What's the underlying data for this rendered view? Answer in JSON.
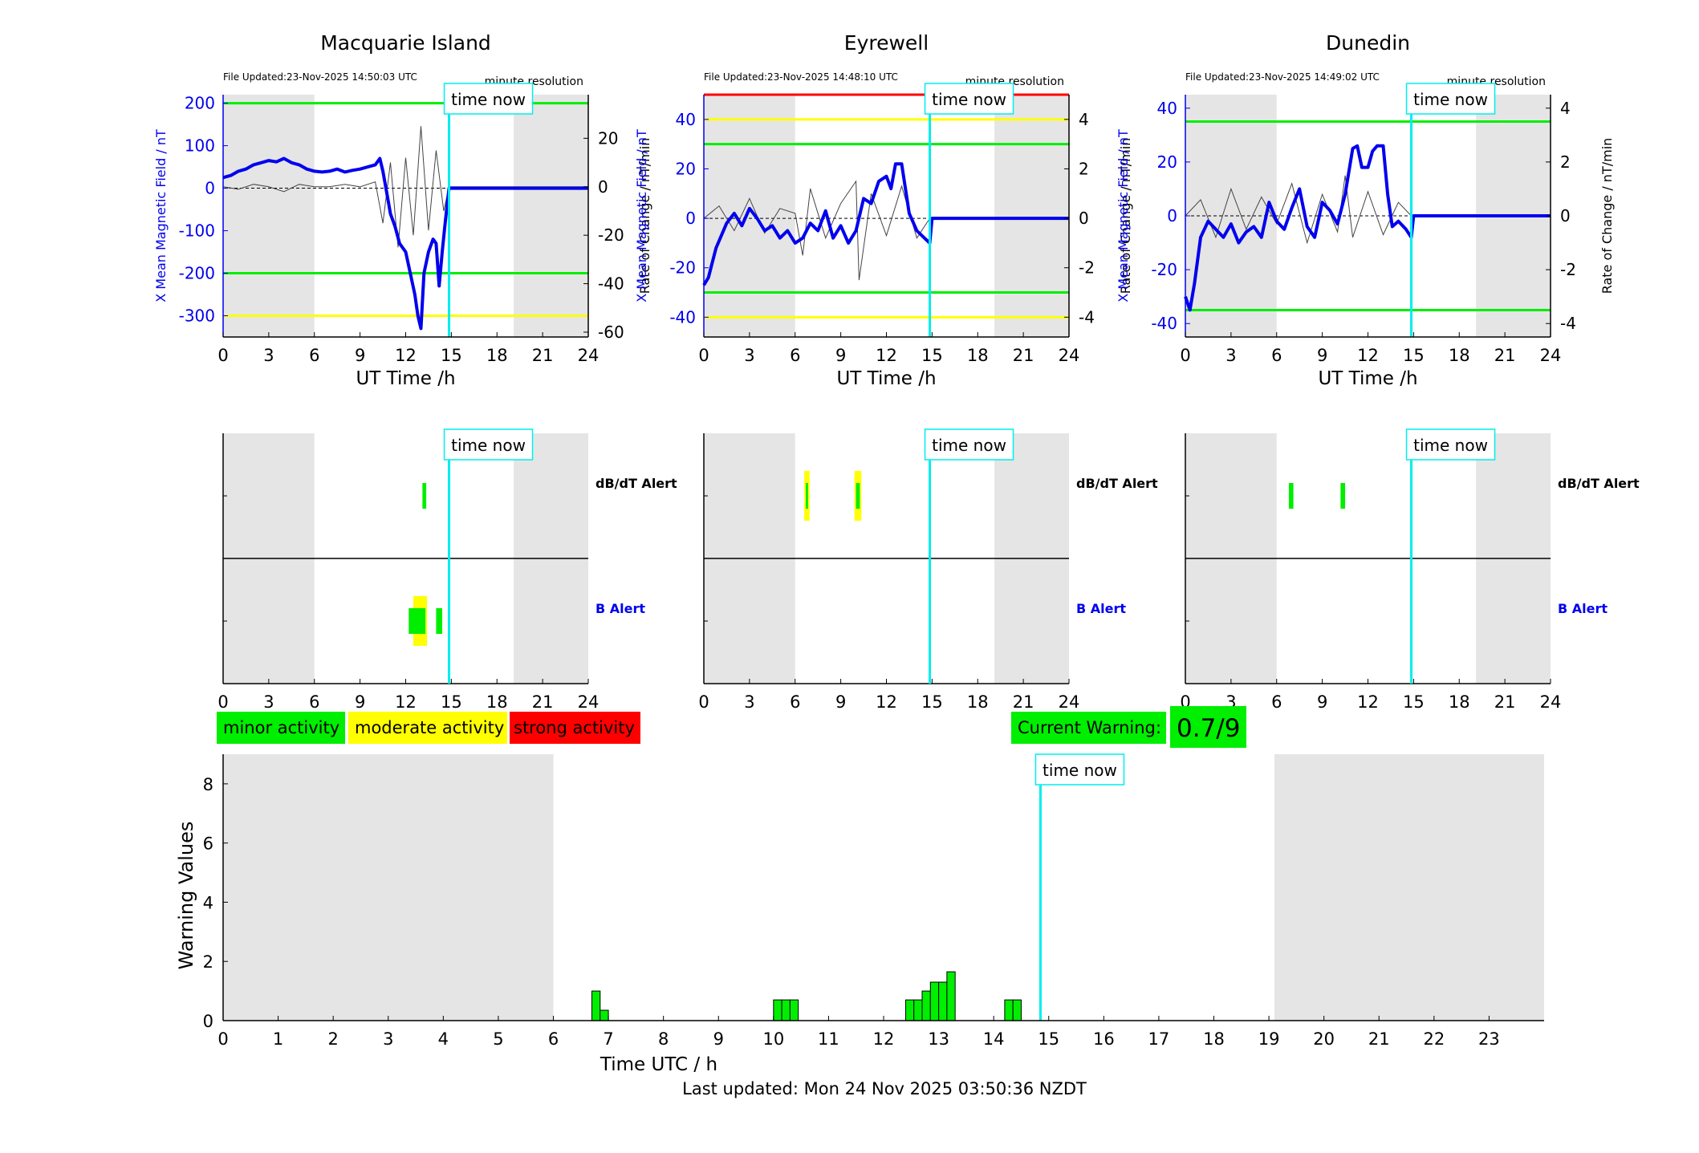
{
  "panels": [
    {
      "title": "Macquarie Island",
      "file_updated": "File Updated:23-Nov-2025 14:50:03 UTC",
      "resolution": "minute resolution",
      "time_now_label": "time now",
      "left_axis_label": "X Mean Magnetic Field / nT",
      "right_axis_label": "Rate of Change / nT/min",
      "x_axis_label": "UT Time /h",
      "x_ticks": [
        "0",
        "3",
        "6",
        "9",
        "12",
        "15",
        "18",
        "21",
        "24"
      ],
      "left_ticks": [
        "-300",
        "-200",
        "-100",
        "0",
        "100",
        "200"
      ],
      "right_ticks": [
        "-60",
        "-40",
        "-20",
        "0",
        "20"
      ],
      "alert_dbdt_label": "dB/dT Alert",
      "alert_b_label": "B Alert",
      "alert_x_ticks": [
        "0",
        "3",
        "6",
        "9",
        "12",
        "15",
        "18",
        "21",
        "24"
      ]
    },
    {
      "title": "Eyrewell",
      "file_updated": "File Updated:23-Nov-2025 14:48:10 UTC",
      "resolution": "minute resolution",
      "time_now_label": "time now",
      "left_axis_label": "X Mean Magnetic Field / nT",
      "right_axis_label": "Rate of Change / nT/min",
      "x_axis_label": "UT Time /h",
      "x_ticks": [
        "0",
        "3",
        "6",
        "9",
        "12",
        "15",
        "18",
        "21",
        "24"
      ],
      "left_ticks": [
        "-40",
        "-20",
        "0",
        "20",
        "40"
      ],
      "right_ticks": [
        "-4",
        "-2",
        "0",
        "2",
        "4"
      ],
      "alert_dbdt_label": "dB/dT Alert",
      "alert_b_label": "B Alert",
      "alert_x_ticks": [
        "0",
        "3",
        "6",
        "9",
        "12",
        "15",
        "18",
        "21",
        "24"
      ]
    },
    {
      "title": "Dunedin",
      "file_updated": "File Updated:23-Nov-2025 14:49:02 UTC",
      "resolution": "minute resolution",
      "time_now_label": "time now",
      "left_axis_label": "X Mean Magnetic Field / nT",
      "right_axis_label": "Rate of Change / nT/min",
      "x_axis_label": "UT Time /h",
      "x_ticks": [
        "0",
        "3",
        "6",
        "9",
        "12",
        "15",
        "18",
        "21",
        "24"
      ],
      "left_ticks": [
        "-40",
        "-20",
        "0",
        "20",
        "40"
      ],
      "right_ticks": [
        "-4",
        "-2",
        "0",
        "2",
        "4"
      ],
      "alert_dbdt_label": "dB/dT Alert",
      "alert_b_label": "B Alert",
      "alert_x_ticks": [
        "0",
        "3",
        "6",
        "9",
        "12",
        "15",
        "18",
        "21",
        "24"
      ]
    }
  ],
  "legend": {
    "minor": "minor activity",
    "moderate": "moderate activity",
    "strong": "strong activity"
  },
  "current_warning": {
    "label": "Current Warning:",
    "value": "0.7/9"
  },
  "bottom": {
    "time_now_label": "time now",
    "y_label": "Warning Values",
    "x_label": "Time UTC / h",
    "x_ticks": [
      "0",
      "1",
      "2",
      "3",
      "4",
      "5",
      "6",
      "7",
      "8",
      "9",
      "10",
      "11",
      "12",
      "13",
      "14",
      "15",
      "16",
      "17",
      "18",
      "19",
      "20",
      "21",
      "22",
      "23"
    ],
    "y_ticks": [
      "0",
      "2",
      "4",
      "6",
      "8"
    ]
  },
  "footer": {
    "last_updated": "Last updated: Mon 24 Nov 2025 03:50:36 NZDT"
  },
  "colors": {
    "field": "#0000ee",
    "rate": "#444444",
    "minor": "#00ee00",
    "moderate": "#ffff00",
    "strong": "#ff0000",
    "time_now": "#00eeee",
    "night_shade": "#e5e5e5"
  },
  "chart_data": [
    {
      "type": "line",
      "station": "Macquarie Island",
      "xlim": [
        0,
        24
      ],
      "ylim_left": [
        -350,
        220
      ],
      "ylim_right": [
        -62,
        38
      ],
      "time_now": 14.85,
      "night_shade_hours": [
        [
          0,
          6
        ],
        [
          19.1,
          24
        ]
      ],
      "threshold_lines": [
        {
          "value": 200,
          "color": "#00ee00"
        },
        {
          "value": -200,
          "color": "#00ee00"
        },
        {
          "value": -300,
          "color": "#ffff00"
        }
      ],
      "series": [
        {
          "name": "X Mean Magnetic Field / nT",
          "x": [
            0,
            0.5,
            1,
            1.5,
            2,
            2.5,
            3,
            3.5,
            4,
            4.5,
            5,
            5.5,
            6,
            6.5,
            7,
            7.5,
            8,
            8.5,
            9,
            9.5,
            10,
            10.3,
            10.5,
            10.8,
            11,
            11.3,
            11.6,
            12,
            12.3,
            12.6,
            12.8,
            13,
            13.2,
            13.5,
            13.8,
            14,
            14.2,
            14.4,
            14.6,
            14.85,
            15,
            24
          ],
          "y": [
            25,
            30,
            40,
            45,
            55,
            60,
            65,
            62,
            70,
            60,
            55,
            45,
            40,
            38,
            40,
            45,
            38,
            42,
            45,
            50,
            55,
            70,
            40,
            -20,
            -60,
            -90,
            -130,
            -150,
            -200,
            -250,
            -300,
            -330,
            -200,
            -150,
            -120,
            -130,
            -230,
            -150,
            -80,
            0,
            0,
            0
          ]
        },
        {
          "name": "Rate of Change / nT/min",
          "x": [
            0,
            1,
            2,
            3,
            4,
            5,
            6,
            7,
            8,
            9,
            10,
            10.5,
            11,
            11.5,
            12,
            12.5,
            13,
            13.5,
            14,
            14.5,
            14.85,
            24
          ],
          "y": [
            0,
            -1,
            1,
            0,
            -2,
            1,
            0,
            0,
            1,
            0,
            2,
            -15,
            10,
            -25,
            12,
            -20,
            25,
            -18,
            15,
            -10,
            0,
            0
          ]
        }
      ]
    },
    {
      "type": "line",
      "station": "Eyrewell",
      "xlim": [
        0,
        24
      ],
      "ylim_left": [
        -48,
        50
      ],
      "ylim_right": [
        -4.8,
        5
      ],
      "time_now": 14.85,
      "night_shade_hours": [
        [
          0,
          6
        ],
        [
          19.1,
          24
        ]
      ],
      "threshold_lines": [
        {
          "value": 50,
          "color": "#ff0000"
        },
        {
          "value": 40,
          "color": "#ffff00"
        },
        {
          "value": 30,
          "color": "#00ee00"
        },
        {
          "value": -30,
          "color": "#00ee00"
        },
        {
          "value": -40,
          "color": "#ffff00"
        }
      ],
      "series": [
        {
          "name": "X Mean Magnetic Field / nT",
          "x": [
            0,
            0.3,
            0.8,
            1.5,
            2,
            2.5,
            3,
            3.5,
            4,
            4.5,
            5,
            5.5,
            6,
            6.5,
            7,
            7.5,
            8,
            8.5,
            9,
            9.5,
            10,
            10.5,
            11,
            11.5,
            12,
            12.3,
            12.6,
            13,
            13.5,
            14,
            14.5,
            14.85,
            15,
            24
          ],
          "y": [
            -27,
            -24,
            -12,
            -2,
            2,
            -3,
            4,
            0,
            -5,
            -3,
            -8,
            -5,
            -10,
            -8,
            -2,
            -5,
            3,
            -8,
            -3,
            -10,
            -5,
            8,
            6,
            15,
            17,
            12,
            22,
            22,
            2,
            -5,
            -8,
            -10,
            0,
            0
          ]
        },
        {
          "name": "Rate of Change / nT/min",
          "x": [
            0,
            1,
            2,
            3,
            4,
            5,
            6,
            6.5,
            7,
            8,
            9,
            10,
            10.2,
            11,
            12,
            13,
            14,
            14.85,
            24
          ],
          "y": [
            0,
            0.5,
            -0.5,
            0.8,
            -0.6,
            0.4,
            0.2,
            -1.5,
            1.2,
            -0.8,
            0.6,
            1.5,
            -2.5,
            1,
            -0.7,
            1.3,
            -0.8,
            0,
            0
          ]
        }
      ]
    },
    {
      "type": "line",
      "station": "Dunedin",
      "xlim": [
        0,
        24
      ],
      "ylim_left": [
        -45,
        45
      ],
      "ylim_right": [
        -4.5,
        4.5
      ],
      "time_now": 14.85,
      "night_shade_hours": [
        [
          0,
          6
        ],
        [
          19.1,
          24
        ]
      ],
      "threshold_lines": [
        {
          "value": 35,
          "color": "#00ee00"
        },
        {
          "value": -35,
          "color": "#00ee00"
        }
      ],
      "series": [
        {
          "name": "X Mean Magnetic Field / nT",
          "x": [
            0,
            0.3,
            0.6,
            1,
            1.5,
            2,
            2.5,
            3,
            3.5,
            4,
            4.5,
            5,
            5.5,
            6,
            6.5,
            7,
            7.5,
            8,
            8.5,
            9,
            9.5,
            10,
            10.5,
            11,
            11.3,
            11.6,
            12,
            12.3,
            12.6,
            13,
            13.3,
            13.6,
            14,
            14.5,
            14.85,
            15,
            24
          ],
          "y": [
            -30,
            -35,
            -25,
            -8,
            -2,
            -5,
            -8,
            -3,
            -10,
            -6,
            -4,
            -8,
            5,
            -2,
            -5,
            3,
            10,
            -4,
            -8,
            5,
            2,
            -3,
            8,
            25,
            26,
            18,
            18,
            24,
            26,
            26,
            8,
            -4,
            -2,
            -5,
            -8,
            0,
            0
          ]
        },
        {
          "name": "Rate of Change / nT/min",
          "x": [
            0,
            1,
            2,
            3,
            4,
            5,
            6,
            7,
            8,
            9,
            10,
            10.5,
            11,
            12,
            13,
            14,
            14.85,
            24
          ],
          "y": [
            0,
            0.6,
            -0.8,
            1,
            -0.5,
            0.7,
            -0.3,
            1.2,
            -1,
            0.8,
            -0.6,
            1.5,
            -0.8,
            0.9,
            -0.7,
            0.5,
            0,
            0
          ]
        }
      ]
    },
    {
      "type": "bar",
      "title": "Warning Values",
      "xlim": [
        0,
        24
      ],
      "ylim": [
        0,
        9
      ],
      "time_now": 14.85,
      "night_shade_hours": [
        [
          0,
          6
        ],
        [
          19.1,
          24
        ]
      ],
      "x": [
        6.7,
        6.85,
        10,
        10.15,
        10.3,
        12.4,
        12.55,
        12.7,
        12.85,
        13,
        13.15,
        14.2,
        14.35
      ],
      "values": [
        1.0,
        0.35,
        0.7,
        0.7,
        0.7,
        0.7,
        0.7,
        1.0,
        1.3,
        1.3,
        1.65,
        0.7,
        0.7
      ]
    }
  ]
}
